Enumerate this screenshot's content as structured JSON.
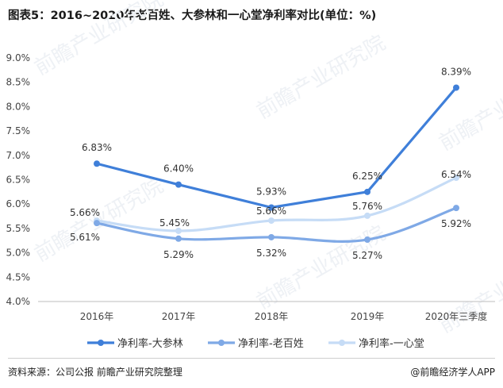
{
  "chart_data": {
    "type": "line",
    "title": "图表5：2016~2020年老百姓、大参林和一心堂净利率对比(单位：%)",
    "categories": [
      "2016年",
      "2017年",
      "2018年",
      "2019年",
      "2020年三季度"
    ],
    "y_ticks": [
      "4.0%",
      "4.5%",
      "5.0%",
      "5.5%",
      "6.0%",
      "6.5%",
      "7.0%",
      "7.5%",
      "8.0%",
      "8.5%",
      "9.0%"
    ],
    "ylim": [
      4.0,
      9.0
    ],
    "grid": false,
    "legend_position": "bottom",
    "series": [
      {
        "name": "净利率-大参林",
        "color": "#3f7fd9",
        "values": [
          6.83,
          6.4,
          5.93,
          6.25,
          8.39
        ],
        "labels": [
          "6.83%",
          "6.40%",
          "5.93%",
          "6.25%",
          "8.39%"
        ]
      },
      {
        "name": "净利率-老百姓",
        "color": "#7fa9e6",
        "values": [
          5.61,
          5.29,
          5.32,
          5.27,
          5.92
        ],
        "labels": [
          "5.61%",
          "5.29%",
          "5.32%",
          "5.27%",
          "5.92%"
        ]
      },
      {
        "name": "净利率-一心堂",
        "color": "#c6dcf6",
        "values": [
          5.66,
          5.45,
          5.66,
          5.76,
          6.54
        ],
        "labels": [
          "5.66%",
          "5.45%",
          "5.66%",
          "5.76%",
          "6.54%"
        ]
      }
    ]
  },
  "footer": {
    "source": "资料来源：公司公报 前瞻产业研究院整理",
    "brand": "@前瞻经济学人APP"
  },
  "watermark": "前瞻产业研究院"
}
